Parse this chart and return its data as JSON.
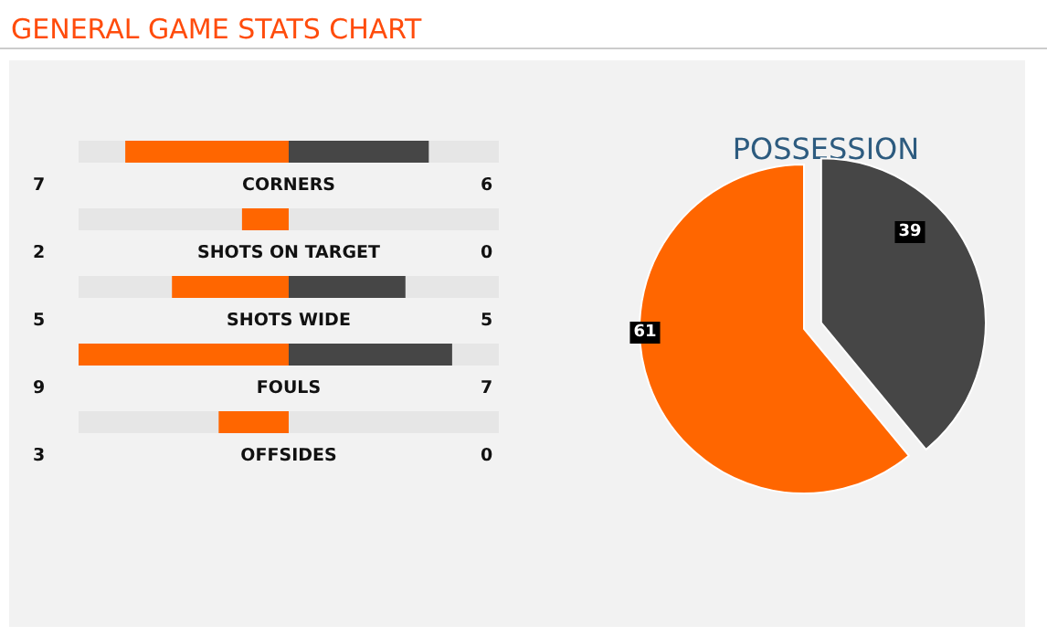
{
  "chart_data": [
    {
      "type": "bar",
      "title": "GENERAL GAME STATS CHART",
      "orientation": "horizontal",
      "categories": [
        "CORNERS",
        "SHOTS ON TARGET",
        "SHOTS WIDE",
        "FOULS",
        "OFFSIDES"
      ],
      "data_labels": true,
      "series": [
        {
          "color": "#ff6600",
          "values": [
            7,
            2,
            5,
            9,
            3
          ]
        }
      ]
    },
    {
      "type": "bar",
      "orientation": "horizontal",
      "categories": [
        null,
        null,
        null,
        null,
        null
      ],
      "data_labels": true,
      "series": [
        {
          "color": "#464646",
          "values": [
            6,
            0,
            5,
            7,
            0
          ]
        }
      ]
    },
    {
      "type": "pie",
      "title": "POSSESSION",
      "categories": [
        null,
        null
      ],
      "values": [
        61,
        39
      ],
      "colors": [
        "#ff6600",
        "#464646"
      ],
      "data_labels": true
    }
  ]
}
